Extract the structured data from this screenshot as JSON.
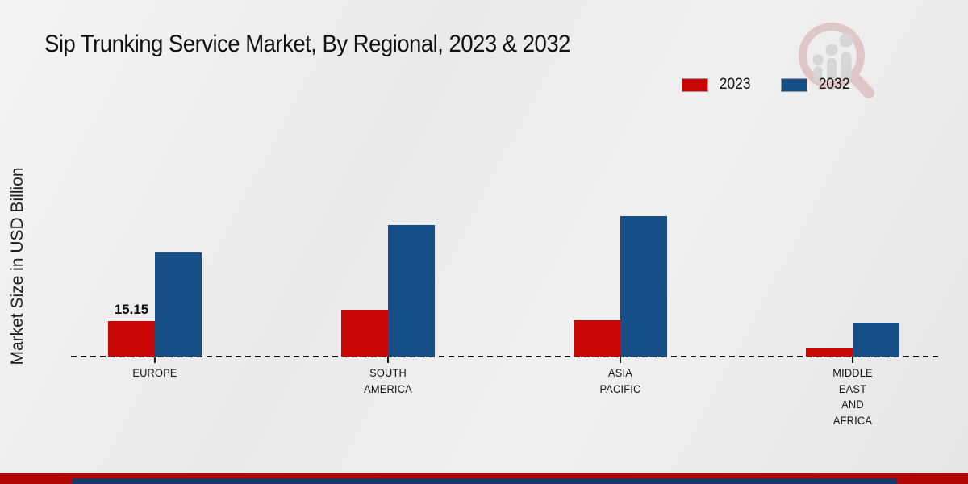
{
  "title": "Sip Trunking Service Market, By Regional, 2023 & 2032",
  "ylabel": "Market Size in USD Billion",
  "legend": {
    "items": [
      {
        "label": "2023",
        "color": "#c90606"
      },
      {
        "label": "2032",
        "color": "#164e87"
      }
    ]
  },
  "colors": {
    "bar_2023": "#c90606",
    "bar_2032": "#164e87",
    "footer_red": "#b20505",
    "footer_navy": "#16396b",
    "background": "#ececec",
    "text": "#141414"
  },
  "watermark": {
    "name": "magnifier-growth-chart-logo"
  },
  "chart_data": {
    "type": "bar",
    "title": "Sip Trunking Service Market, By Regional, 2023 & 2032",
    "xlabel": "",
    "ylabel": "Market Size in USD Billion",
    "categories": [
      "EUROPE",
      "SOUTH AMERICA",
      "ASIA PACIFIC",
      "MIDDLE EAST AND AFRICA"
    ],
    "category_lines": [
      [
        "EUROPE"
      ],
      [
        "SOUTH",
        "AMERICA"
      ],
      [
        "ASIA",
        "PACIFIC"
      ],
      [
        "MIDDLE",
        "EAST",
        "AND",
        "AFRICA"
      ]
    ],
    "series": [
      {
        "name": "2023",
        "color": "#c90606",
        "values": [
          15.15,
          20.0,
          15.5,
          3.45
        ]
      },
      {
        "name": "2032",
        "color": "#164e87",
        "values": [
          44.4,
          56.1,
          59.9,
          14.5
        ]
      }
    ],
    "data_labels": [
      {
        "series": 0,
        "category_index": 0,
        "text": "15.15"
      }
    ],
    "ylim": [
      0,
      65
    ],
    "grid": false,
    "baseline_style": "dashed",
    "legend_position": "top-right"
  }
}
